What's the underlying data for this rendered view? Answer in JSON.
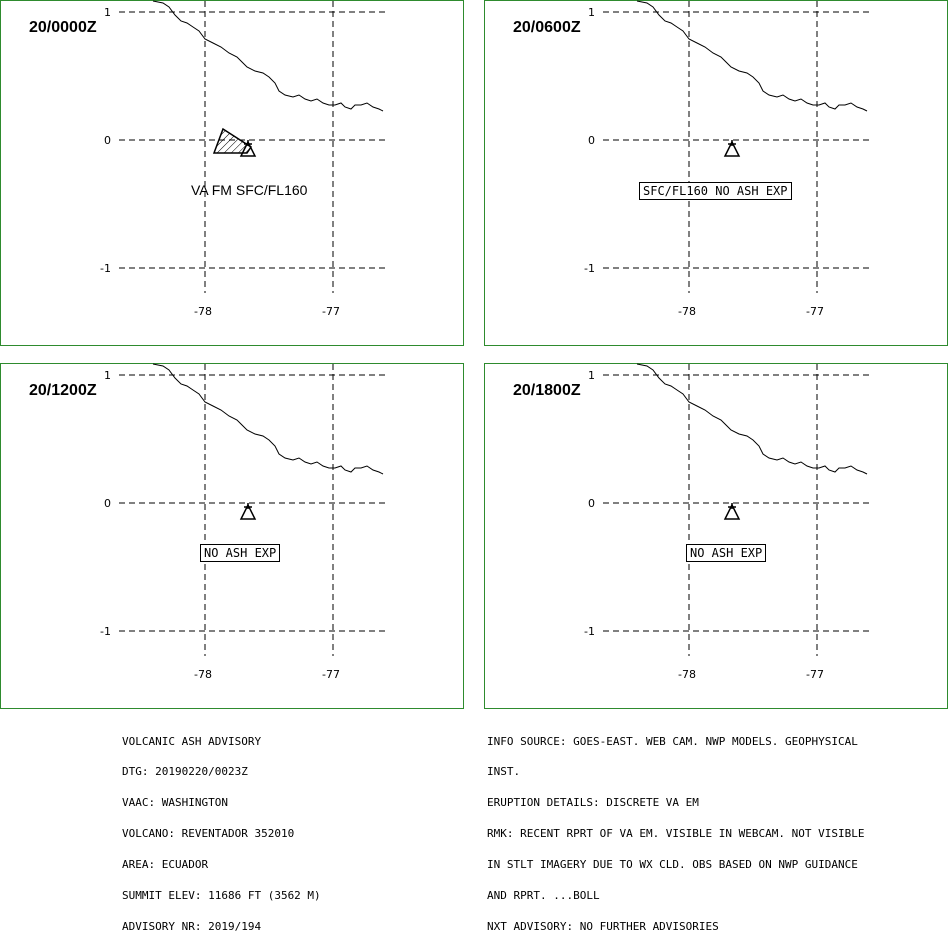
{
  "axis": {
    "lat_ticks": [
      "1",
      "0",
      "-1"
    ],
    "lon_ticks": [
      "-78",
      "-77"
    ]
  },
  "panels": [
    {
      "time": "20/0000Z",
      "note": "VA FM SFC/FL160",
      "note_boxed": false,
      "ash_area": true
    },
    {
      "time": "20/0600Z",
      "note": "SFC/FL160 NO ASH EXP",
      "note_boxed": true,
      "ash_area": false
    },
    {
      "time": "20/1200Z",
      "note": "NO ASH EXP",
      "note_boxed": true,
      "ash_area": false
    },
    {
      "time": "20/1800Z",
      "note": "NO ASH EXP",
      "note_boxed": true,
      "ash_area": false
    }
  ],
  "advisory_left": [
    "VOLCANIC ASH ADVISORY",
    "DTG: 20190220/0023Z",
    "VAAC: WASHINGTON",
    "VOLCANO: REVENTADOR 352010",
    "AREA: ECUADOR",
    "SUMMIT ELEV: 11686 FT (3562 M)",
    "ADVISORY NR: 2019/194"
  ],
  "advisory_right": [
    "INFO SOURCE: GOES-EAST. WEB CAM. NWP MODELS. GEOPHYSICAL",
    "INST.",
    "ERUPTION DETAILS: DISCRETE VA EM",
    "RMK: RECENT RPRT OF VA EM. VISIBLE IN WEBCAM. NOT VISIBLE",
    "IN STLT IMAGERY DUE TO WX CLD. OBS BASED ON NWP GUIDANCE",
    "AND RPRT. ...BOLL",
    "NXT ADVISORY: NO FURTHER ADVISORIES"
  ],
  "colors": {
    "frame": "#2e8b2e",
    "lines": "#000000"
  }
}
